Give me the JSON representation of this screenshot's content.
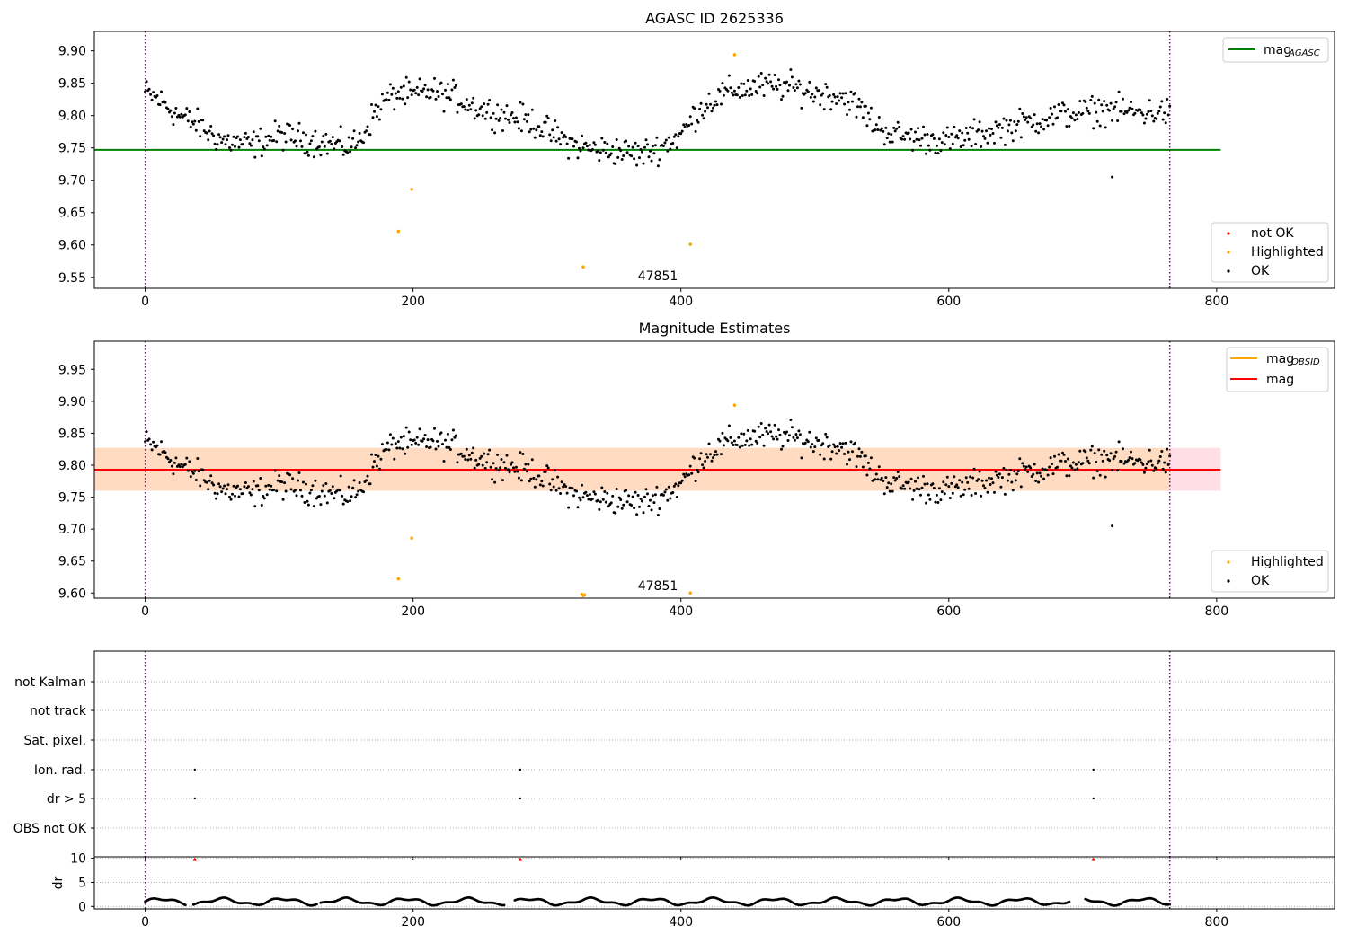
{
  "chart_data": [
    {
      "type": "scatter",
      "title": "AGASC ID 2625336",
      "xlim": [
        -38,
        888
      ],
      "ylim": [
        9.533,
        9.93
      ],
      "xticks": [
        "0",
        "200",
        "400",
        "600",
        "800"
      ],
      "yticks": [
        "9.55",
        "9.60",
        "9.65",
        "9.70",
        "9.75",
        "9.80",
        "9.85",
        "9.90"
      ],
      "grid": false,
      "legends": [
        {
          "placement": "top-right",
          "entries": [
            {
              "label": "mag",
              "sub": "AGASC",
              "color": "#008000"
            }
          ]
        },
        {
          "placement": "bottom-right",
          "entries": [
            {
              "label": "not OK",
              "color": "#ff0000"
            },
            {
              "label": "Highlighted",
              "color": "#ffa500"
            },
            {
              "label": "OK",
              "color": "#000000"
            }
          ]
        }
      ],
      "annotation": "47851",
      "obsid_boundaries": [
        0,
        765
      ],
      "reference_lines": [
        {
          "name": "mag_AGASC",
          "y": 9.747,
          "x_range": [
            -38,
            803
          ],
          "color": "#008000"
        }
      ],
      "series": [
        {
          "name": "Highlighted",
          "color": "#ffa500",
          "points": [
            [
              189,
              9.621
            ],
            [
              199,
              9.686
            ],
            [
              327,
              9.566
            ],
            [
              407,
              9.601
            ],
            [
              440,
              9.894
            ]
          ]
        },
        {
          "name": "OK",
          "color": "#000000",
          "trend": [
            [
              0,
              9.835
            ],
            [
              10,
              9.825
            ],
            [
              25,
              9.8
            ],
            [
              40,
              9.785
            ],
            [
              50,
              9.77
            ],
            [
              60,
              9.76
            ],
            [
              80,
              9.755
            ],
            [
              100,
              9.77
            ],
            [
              130,
              9.76
            ],
            [
              150,
              9.752
            ],
            [
              160,
              9.76
            ],
            [
              170,
              9.8
            ],
            [
              180,
              9.825
            ],
            [
              190,
              9.835
            ],
            [
              200,
              9.83
            ],
            [
              210,
              9.838
            ],
            [
              230,
              9.83
            ],
            [
              250,
              9.81
            ],
            [
              270,
              9.8
            ],
            [
              290,
              9.79
            ],
            [
              305,
              9.77
            ],
            [
              320,
              9.755
            ],
            [
              335,
              9.748
            ],
            [
              355,
              9.745
            ],
            [
              370,
              9.74
            ],
            [
              385,
              9.752
            ],
            [
              400,
              9.77
            ],
            [
              410,
              9.8
            ],
            [
              420,
              9.82
            ],
            [
              440,
              9.84
            ],
            [
              460,
              9.845
            ],
            [
              480,
              9.845
            ],
            [
              500,
              9.835
            ],
            [
              520,
              9.83
            ],
            [
              535,
              9.81
            ],
            [
              545,
              9.785
            ],
            [
              560,
              9.77
            ],
            [
              580,
              9.765
            ],
            [
              600,
              9.76
            ],
            [
              620,
              9.77
            ],
            [
              640,
              9.78
            ],
            [
              660,
              9.79
            ],
            [
              680,
              9.8
            ],
            [
              700,
              9.805
            ],
            [
              720,
              9.81
            ],
            [
              740,
              9.805
            ],
            [
              765,
              9.805
            ]
          ],
          "outliers": [
            [
              722,
              9.705
            ]
          ]
        }
      ]
    },
    {
      "type": "scatter",
      "title": "Magnitude Estimates",
      "xlim": [
        -38,
        888
      ],
      "ylim": [
        9.592,
        9.994
      ],
      "xticks": [
        "0",
        "200",
        "400",
        "600",
        "800"
      ],
      "yticks": [
        "9.60",
        "9.65",
        "9.70",
        "9.75",
        "9.80",
        "9.85",
        "9.90",
        "9.95"
      ],
      "grid": false,
      "legends": [
        {
          "placement": "top-right",
          "entries": [
            {
              "label": "mag",
              "sub": "OBSID",
              "color": "#ffa500"
            },
            {
              "label": "mag",
              "sub": "",
              "color": "#ff0000"
            }
          ]
        },
        {
          "placement": "bottom-right",
          "entries": [
            {
              "label": "Highlighted",
              "color": "#ffa500"
            },
            {
              "label": "OK",
              "color": "#000000"
            }
          ]
        }
      ],
      "annotation": "47851",
      "obsid_boundaries": [
        0,
        765
      ],
      "bands": [
        {
          "name": "mag range",
          "y_range": [
            9.76,
            9.827
          ],
          "x_range": [
            -38,
            803
          ],
          "color": "#ffc0cb"
        },
        {
          "name": "mag_OBSID range",
          "y_range": [
            9.76,
            9.827
          ],
          "x_range": [
            -38,
            765
          ],
          "color": "#ffdab9"
        }
      ],
      "reference_lines": [
        {
          "name": "mag_OBSID",
          "y": 9.793,
          "x_range": [
            -38,
            765
          ],
          "color": "#ffa500"
        },
        {
          "name": "mag",
          "y": 9.793,
          "x_range": [
            -38,
            803
          ],
          "color": "#ff0000"
        }
      ],
      "series": [
        {
          "name": "Highlighted",
          "color": "#ffa500",
          "points": [
            [
              189,
              9.622
            ],
            [
              199,
              9.686
            ],
            [
              326,
              9.598
            ],
            [
              327,
              9.596
            ],
            [
              328,
              9.597
            ],
            [
              407,
              9.6
            ],
            [
              440,
              9.894
            ]
          ]
        },
        {
          "name": "OK",
          "color": "#000000",
          "same_as_panel": 0
        }
      ]
    },
    {
      "type": "scatter",
      "title": "",
      "xlim": [
        -38,
        888
      ],
      "categories": [
        "not Kalman",
        "not track",
        "Sat. pixel.",
        "Ion. rad.",
        "dr > 5",
        "OBS not OK"
      ],
      "grid": true,
      "obsid_boundaries": [
        0,
        765
      ],
      "flag_points": [
        {
          "category": "Ion. rad.",
          "x": [
            37,
            280,
            708
          ]
        },
        {
          "category": "dr > 5",
          "x": [
            37,
            280,
            708
          ]
        }
      ]
    },
    {
      "type": "scatter",
      "title": "",
      "xlim": [
        -38,
        888
      ],
      "ylim": [
        -0.5,
        10.3
      ],
      "xticks": [
        "0",
        "200",
        "400",
        "600",
        "800"
      ],
      "yticks": [
        "0",
        "5",
        "10"
      ],
      "ylabel": "dr",
      "grid": true,
      "obsid_boundaries": [
        0,
        765
      ],
      "series": [
        {
          "name": "dr",
          "color": "#000000",
          "baseline": 1.0
        },
        {
          "name": "dr > 5",
          "color": "#ff0000",
          "points": [
            [
              37,
              9.8
            ],
            [
              280,
              9.8
            ],
            [
              708,
              9.8
            ]
          ]
        }
      ]
    }
  ]
}
